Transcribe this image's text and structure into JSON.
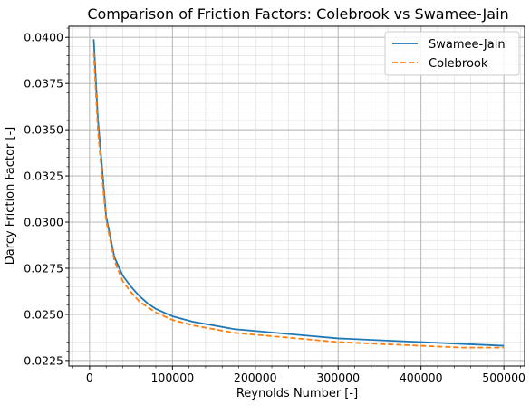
{
  "chart_data": {
    "type": "line",
    "title": "Comparison of Friction Factors: Colebrook vs Swamee-Jain",
    "xlabel": "Reynolds Number [-]",
    "ylabel": "Darcy Friction Factor [-]",
    "xlim": [
      -25000,
      525000
    ],
    "ylim": [
      0.0222,
      0.0406
    ],
    "x_ticks": [
      0,
      100000,
      200000,
      300000,
      400000,
      500000
    ],
    "x_tick_labels": [
      "0",
      "100000",
      "200000",
      "300000",
      "400000",
      "500000"
    ],
    "y_ticks": [
      0.0225,
      0.025,
      0.0275,
      0.03,
      0.0325,
      0.035,
      0.0375,
      0.04
    ],
    "y_tick_labels": [
      "0.0225",
      "0.0250",
      "0.0275",
      "0.0300",
      "0.0325",
      "0.0350",
      "0.0375",
      "0.0400"
    ],
    "grid": true,
    "minor_grid": true,
    "legend_position": "upper right",
    "series": [
      {
        "name": "Swamee-Jain",
        "color": "#1f77b4",
        "style": "solid",
        "x": [
          5000,
          10000,
          15000,
          20000,
          30000,
          40000,
          50000,
          60000,
          70000,
          80000,
          90000,
          100000,
          125000,
          150000,
          175000,
          200000,
          250000,
          300000,
          350000,
          400000,
          450000,
          500000
        ],
        "y": [
          0.0399,
          0.0356,
          0.033,
          0.0303,
          0.0281,
          0.0271,
          0.0265,
          0.026,
          0.0256,
          0.0253,
          0.0251,
          0.0249,
          0.0246,
          0.0244,
          0.0242,
          0.0241,
          0.0239,
          0.0237,
          0.0236,
          0.0235,
          0.0234,
          0.0233
        ]
      },
      {
        "name": "Colebrook",
        "color": "#ff7f0e",
        "style": "dashed",
        "x": [
          5000,
          10000,
          15000,
          20000,
          30000,
          40000,
          50000,
          60000,
          70000,
          80000,
          90000,
          100000,
          125000,
          150000,
          175000,
          200000,
          250000,
          300000,
          350000,
          400000,
          450000,
          500000
        ],
        "y": [
          0.0392,
          0.035,
          0.0325,
          0.0301,
          0.0279,
          0.0268,
          0.0262,
          0.0257,
          0.0254,
          0.0251,
          0.0249,
          0.0247,
          0.0244,
          0.0242,
          0.024,
          0.0239,
          0.0237,
          0.0235,
          0.0234,
          0.0233,
          0.0232,
          0.0232
        ]
      }
    ]
  }
}
